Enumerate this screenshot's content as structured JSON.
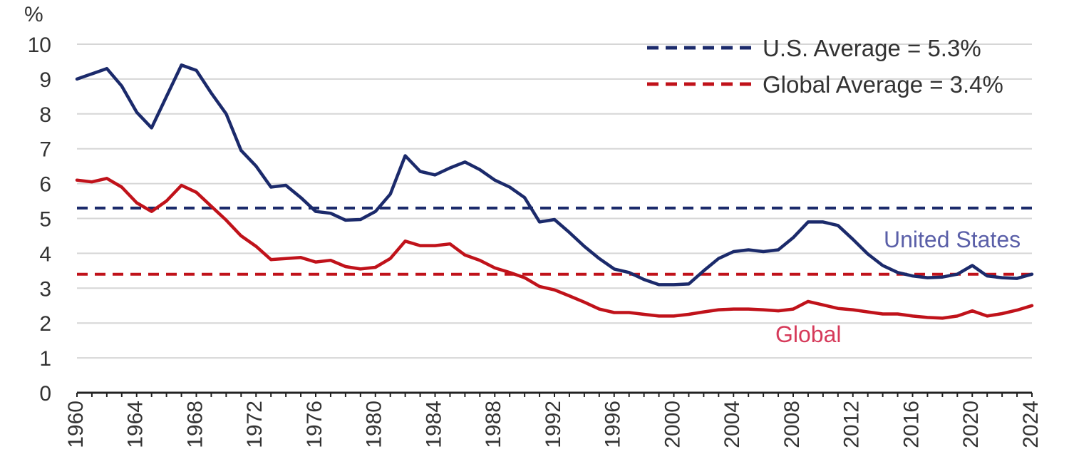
{
  "chart_data": {
    "type": "line",
    "title": "",
    "unit_label": "%",
    "xlabel": "",
    "ylabel": "%",
    "xlim": [
      1960,
      2024
    ],
    "ylim": [
      0,
      10
    ],
    "yticks": [
      0,
      1,
      2,
      3,
      4,
      5,
      6,
      7,
      8,
      9,
      10
    ],
    "xticks": [
      1960,
      1964,
      1968,
      1972,
      1976,
      1980,
      1984,
      1988,
      1992,
      1996,
      2000,
      2004,
      2008,
      2012,
      2016,
      2020,
      2024
    ],
    "grid": true,
    "legend_position": "top-right",
    "x": [
      1960,
      1961,
      1962,
      1963,
      1964,
      1965,
      1966,
      1967,
      1968,
      1969,
      1970,
      1971,
      1972,
      1973,
      1974,
      1975,
      1976,
      1977,
      1978,
      1979,
      1980,
      1981,
      1982,
      1983,
      1984,
      1985,
      1986,
      1987,
      1988,
      1989,
      1990,
      1991,
      1992,
      1993,
      1994,
      1995,
      1996,
      1997,
      1998,
      1999,
      2000,
      2001,
      2002,
      2003,
      2004,
      2005,
      2006,
      2007,
      2008,
      2009,
      2010,
      2011,
      2012,
      2013,
      2014,
      2015,
      2016,
      2017,
      2018,
      2019,
      2020,
      2021,
      2022,
      2023,
      2024
    ],
    "series": [
      {
        "name": "United States",
        "color": "#1b2a6b",
        "values": [
          9.0,
          9.15,
          9.3,
          8.8,
          8.05,
          7.6,
          8.5,
          9.4,
          9.25,
          8.6,
          8.0,
          6.95,
          6.5,
          5.9,
          5.95,
          5.6,
          5.2,
          5.15,
          4.95,
          4.97,
          5.2,
          5.7,
          6.8,
          6.35,
          6.25,
          6.45,
          6.62,
          6.4,
          6.1,
          5.9,
          5.6,
          4.9,
          4.97,
          4.6,
          4.2,
          3.85,
          3.55,
          3.45,
          3.25,
          3.1,
          3.1,
          3.12,
          3.5,
          3.85,
          4.05,
          4.1,
          4.05,
          4.1,
          4.45,
          4.9,
          4.9,
          4.8,
          4.4,
          3.98,
          3.65,
          3.45,
          3.35,
          3.3,
          3.32,
          3.4,
          3.65,
          3.35,
          3.3,
          3.28,
          3.4
        ]
      },
      {
        "name": "Global",
        "color": "#c0121a",
        "values": [
          6.1,
          6.05,
          6.15,
          5.9,
          5.45,
          5.2,
          5.5,
          5.95,
          5.75,
          5.35,
          4.95,
          4.5,
          4.2,
          3.82,
          3.85,
          3.88,
          3.75,
          3.8,
          3.62,
          3.55,
          3.6,
          3.85,
          4.35,
          4.22,
          4.22,
          4.27,
          3.95,
          3.8,
          3.58,
          3.45,
          3.3,
          3.05,
          2.95,
          2.78,
          2.6,
          2.4,
          2.3,
          2.3,
          2.25,
          2.2,
          2.2,
          2.25,
          2.32,
          2.38,
          2.4,
          2.4,
          2.38,
          2.35,
          2.4,
          2.62,
          2.52,
          2.42,
          2.38,
          2.32,
          2.26,
          2.26,
          2.2,
          2.16,
          2.14,
          2.2,
          2.35,
          2.2,
          2.27,
          2.37,
          2.5
        ]
      }
    ],
    "reference_lines": [
      {
        "name": "U.S. Average",
        "value": 5.3,
        "label": "U.S. Average = 5.3%",
        "color": "#1b2a6b"
      },
      {
        "name": "Global Average",
        "value": 3.4,
        "label": "Global Average = 3.4%",
        "color": "#c0121a"
      }
    ],
    "series_labels": {
      "us": {
        "text": "United States",
        "color": "#5a5fa8"
      },
      "global": {
        "text": "Global",
        "color": "#d63a5a"
      }
    },
    "colors": {
      "grid": "#d6d6d6",
      "axis": "#222222"
    }
  }
}
